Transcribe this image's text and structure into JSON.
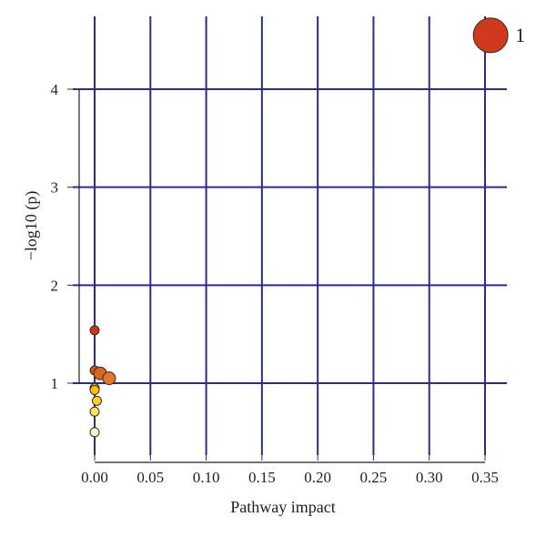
{
  "chart_data": {
    "type": "scatter",
    "xlabel": "Pathway impact",
    "ylabel": "−log10 (p)",
    "xlim": [
      -0.005,
      0.37
    ],
    "ylim": [
      0.35,
      4.8
    ],
    "x_ticks": [
      0.0,
      0.05,
      0.1,
      0.15,
      0.2,
      0.25,
      0.3,
      0.35
    ],
    "x_tick_labels": [
      "0.00",
      "0.05",
      "0.10",
      "0.15",
      "0.20",
      "0.25",
      "0.30",
      "0.35"
    ],
    "y_ticks": [
      1,
      2,
      3,
      4
    ],
    "y_tick_labels": [
      "1",
      "2",
      "3",
      "4"
    ],
    "grid": true,
    "grid_color": "#2b2b8f",
    "points": [
      {
        "x": 0.355,
        "y": 4.55,
        "size": "large",
        "color": "#d03a1c",
        "label": "1"
      },
      {
        "x": 0.0,
        "y": 1.54,
        "size": "small",
        "color": "#c9361a",
        "label": ""
      },
      {
        "x": 0.0,
        "y": 1.13,
        "size": "small",
        "color": "#d2541e",
        "label": ""
      },
      {
        "x": 0.005,
        "y": 1.1,
        "size": "medium",
        "color": "#d9681f",
        "label": ""
      },
      {
        "x": 0.013,
        "y": 1.05,
        "size": "medium",
        "color": "#e0782a",
        "label": ""
      },
      {
        "x": 0.0,
        "y": 0.95,
        "size": "small",
        "color": "#f0b400",
        "label": ""
      },
      {
        "x": 0.0,
        "y": 0.93,
        "size": "small",
        "color": "#f5c300",
        "label": ""
      },
      {
        "x": 0.002,
        "y": 0.82,
        "size": "small",
        "color": "#ffd21f",
        "label": ""
      },
      {
        "x": 0.0,
        "y": 0.71,
        "size": "small",
        "color": "#fde45a",
        "label": ""
      },
      {
        "x": 0.0,
        "y": 0.5,
        "size": "small",
        "color": "#fff6c8",
        "label": ""
      }
    ]
  }
}
